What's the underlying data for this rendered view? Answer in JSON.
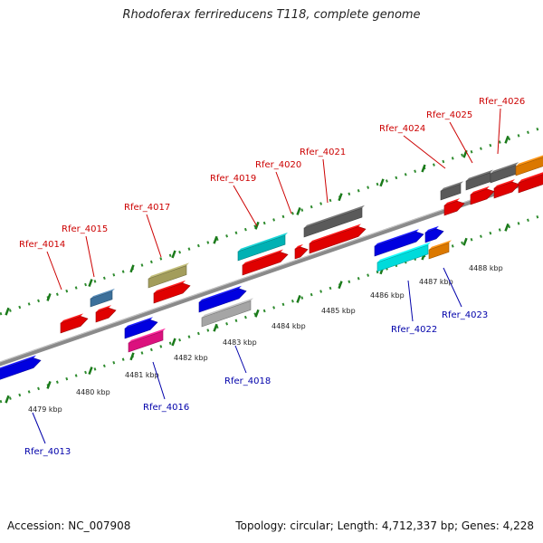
{
  "title": "Rhodoferax ferrireducens T118, complete genome",
  "footer": {
    "accession": "Accession: NC_007908",
    "summary": "Topology: circular; Length: 4,712,337 bp; Genes: 4,228"
  },
  "colors": {
    "plus_label": "#cc0000",
    "minus_label": "#0000aa",
    "backbone": "#8a8a8a",
    "dotted_track": "#2e8b2e",
    "tick_major": "#1a7a1a"
  },
  "ticks": [
    {
      "label": "4479 kbp"
    },
    {
      "label": "4480 kbp"
    },
    {
      "label": "4481 kbp"
    },
    {
      "label": "4482 kbp"
    },
    {
      "label": "4483 kbp"
    },
    {
      "label": "4484 kbp"
    },
    {
      "label": "4485 kbp"
    },
    {
      "label": "4486 kbp"
    },
    {
      "label": "4487 kbp"
    },
    {
      "label": "4488 kbp"
    }
  ],
  "genes_plus": [
    {
      "label": "Rfer_4014",
      "color": "#ff0000"
    },
    {
      "label": "Rfer_4015",
      "color": "#4682b4"
    },
    {
      "label": "Rfer_4017",
      "color": "#bdb76b"
    },
    {
      "label": "Rfer_4019",
      "color": "#00ced1"
    },
    {
      "label": "Rfer_4020",
      "color": "#ff0000"
    },
    {
      "label": "Rfer_4021",
      "color": "#696969"
    },
    {
      "label": "Rfer_4024",
      "color": "#696969"
    },
    {
      "label": "Rfer_4025",
      "color": "#696969"
    },
    {
      "label": "Rfer_4026",
      "color": "#696969"
    }
  ],
  "genes_minus": [
    {
      "label": "Rfer_4013",
      "color": "#0000ff"
    },
    {
      "label": "Rfer_4016",
      "color": "#ff1493"
    },
    {
      "label": "Rfer_4018",
      "color": "#c0c0c0"
    },
    {
      "label": "Rfer_4022",
      "color": "#00ffff"
    },
    {
      "label": "Rfer_4023",
      "color": "#ff8c00"
    }
  ]
}
